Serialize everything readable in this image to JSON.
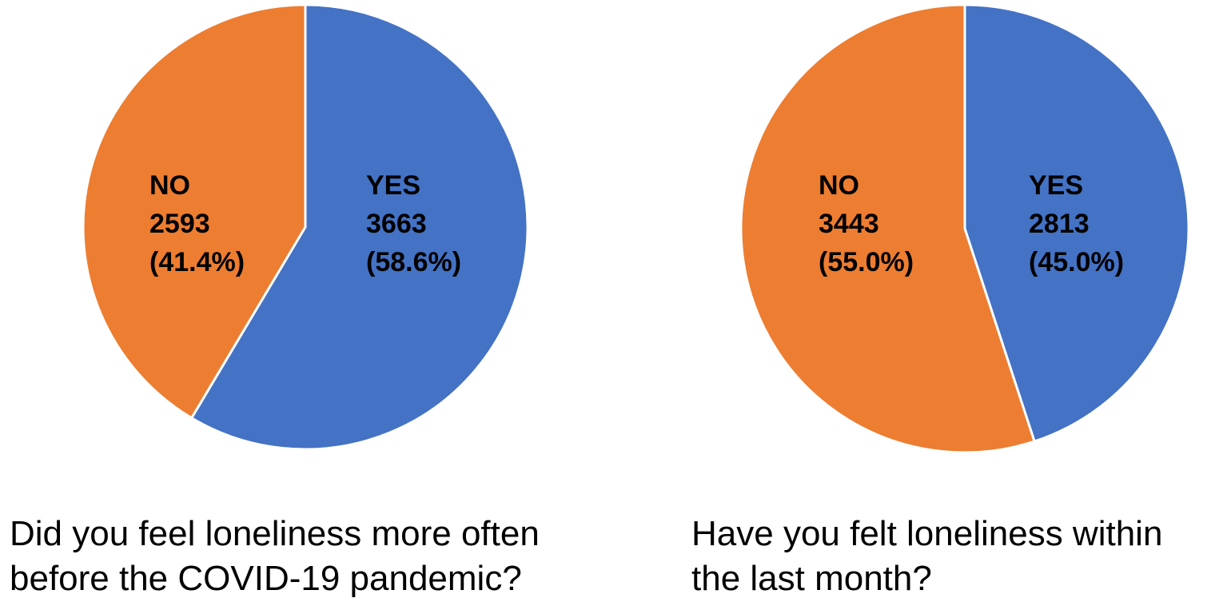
{
  "chart_data": [
    {
      "type": "pie",
      "title": "Did you feel loneliness more often before the COVID-19 pandemic?",
      "caption_lines": [
        "Did you feel loneliness more often",
        "before the COVID-19 pandemic?"
      ],
      "slices": [
        {
          "label": "YES",
          "value": 3663,
          "percent_label": "(58.6%)",
          "color": "#4472C4"
        },
        {
          "label": "NO",
          "value": 2593,
          "percent_label": "(41.4%)",
          "color": "#ED7D31"
        }
      ]
    },
    {
      "type": "pie",
      "title": "Have you felt loneliness within the last month?",
      "caption_lines": [
        "Have you felt loneliness within",
        "the last month?"
      ],
      "slices": [
        {
          "label": "YES",
          "value": 2813,
          "percent_label": "(45.0%)",
          "color": "#4472C4"
        },
        {
          "label": "NO",
          "value": 3443,
          "percent_label": "(55.0%)",
          "color": "#ED7D31"
        }
      ]
    }
  ]
}
